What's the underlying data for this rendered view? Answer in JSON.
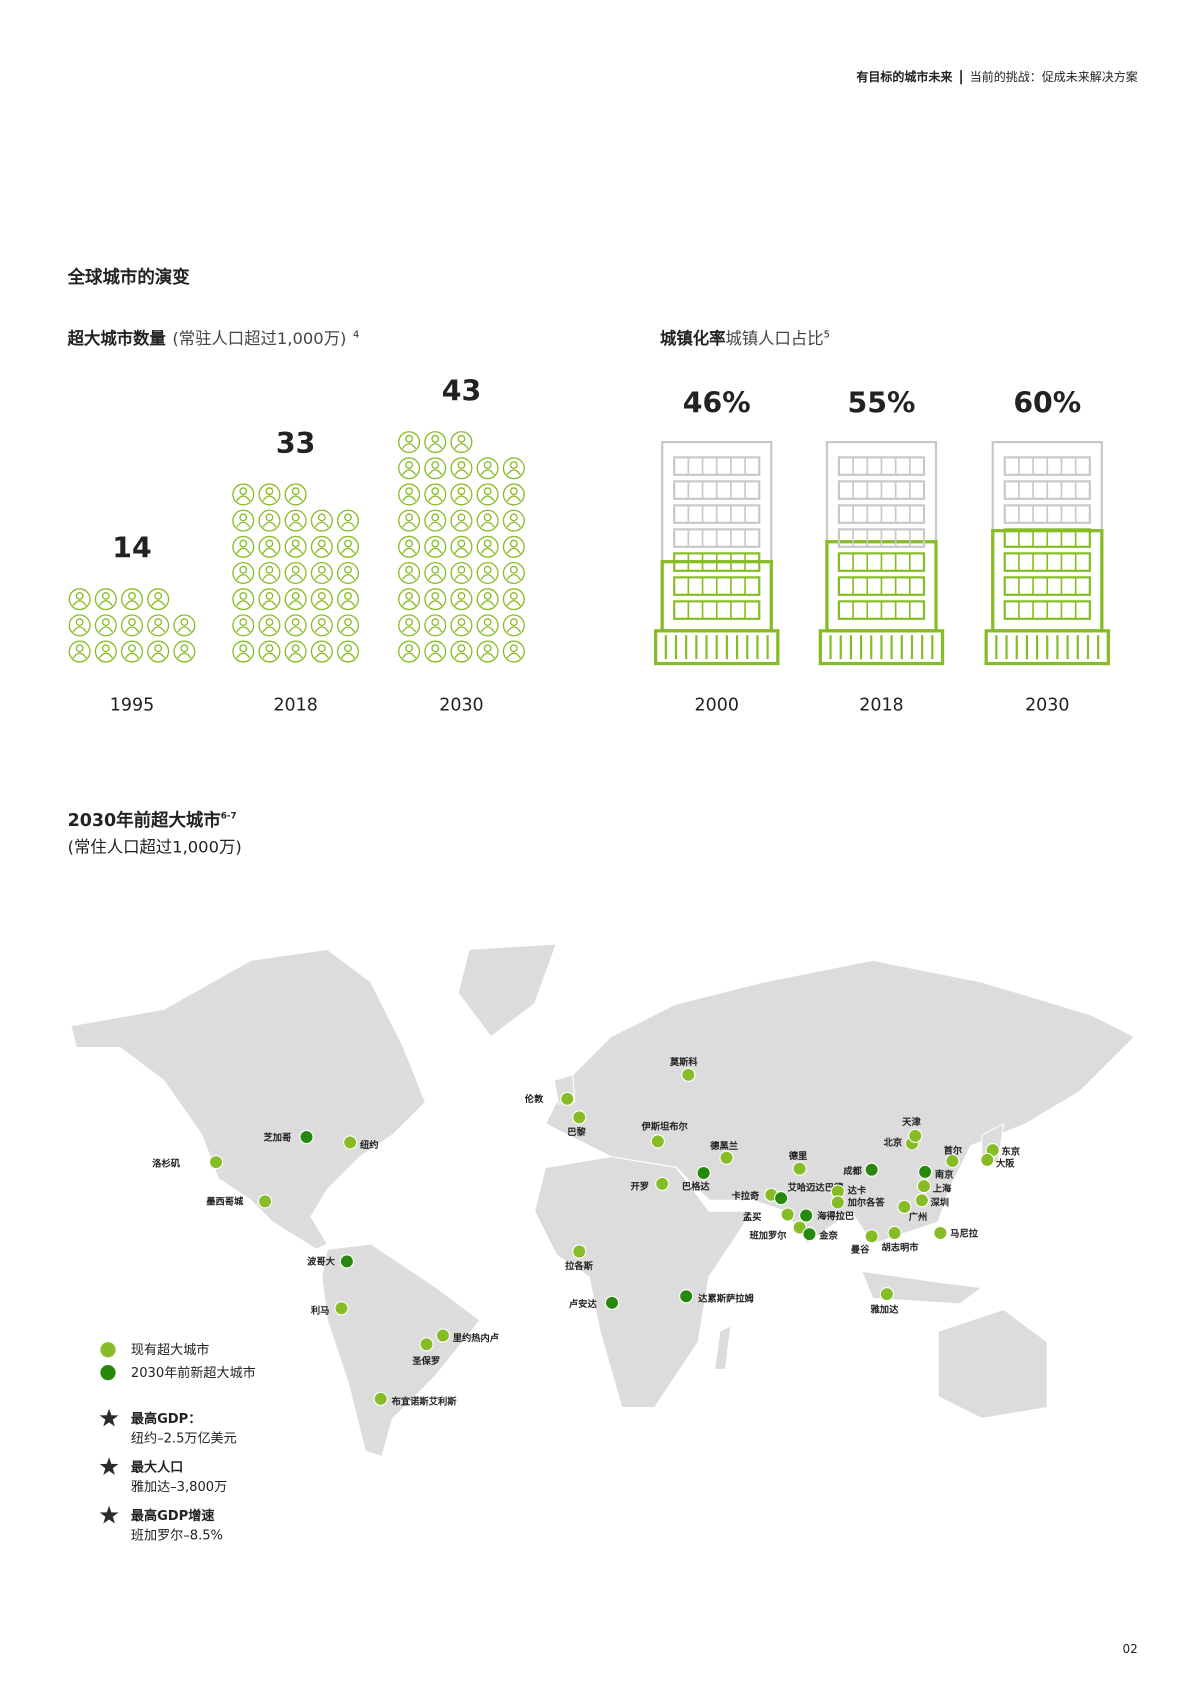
{
  "header": {
    "title": "有目标的城市未来",
    "subtitle": "当前的挑战：促成未来解决方案"
  },
  "section_title": "全球城市的演变",
  "chart_data": [
    {
      "type": "pictogram",
      "title": "超大城市数量",
      "subtitle": "(常驻人口超过1,000万)",
      "footnote": "4",
      "categories": [
        "1995",
        "2018",
        "2030"
      ],
      "values": [
        14,
        33,
        43
      ],
      "color": "#86bc25"
    },
    {
      "type": "building",
      "title": "城镇化率",
      "subtitle": "城镇人口占比",
      "footnote": "5",
      "categories": [
        "2000",
        "2018",
        "2030"
      ],
      "values": [
        46,
        55,
        60
      ],
      "value_labels": [
        "46%",
        "55%",
        "60%"
      ],
      "color": "#86bc25",
      "ylim": [
        0,
        100
      ]
    }
  ],
  "map": {
    "title": "2030年前超大城市",
    "title_note": "6-7",
    "subtitle": "(常住人口超过1,000万)",
    "legend": [
      {
        "label": "现有超大城市",
        "color": "#86bc25"
      },
      {
        "label": "2030年前新超大城市",
        "color": "#26890d"
      }
    ],
    "cities": [
      {
        "name": "莫斯科",
        "kind": 0
      },
      {
        "name": "伦敦",
        "kind": 0
      },
      {
        "name": "巴黎",
        "kind": 0
      },
      {
        "name": "伊斯坦布尔",
        "kind": 0
      },
      {
        "name": "德黑兰",
        "kind": 0
      },
      {
        "name": "开罗",
        "kind": 0
      },
      {
        "name": "巴格达",
        "kind": 1
      },
      {
        "name": "卡拉奇",
        "kind": 0
      },
      {
        "name": "德里",
        "kind": 0
      },
      {
        "name": "艾哈迈达巴德",
        "kind": 1
      },
      {
        "name": "孟买",
        "kind": 0
      },
      {
        "name": "海得拉巴",
        "kind": 1
      },
      {
        "name": "班加罗尔",
        "kind": 0
      },
      {
        "name": "金奈",
        "kind": 1
      },
      {
        "name": "成都",
        "kind": 1
      },
      {
        "name": "达卡",
        "kind": 0
      },
      {
        "name": "加尔各答",
        "kind": 0
      },
      {
        "name": "曼谷",
        "kind": 0
      },
      {
        "name": "胡志明市",
        "kind": 0
      },
      {
        "name": "广州",
        "kind": 0
      },
      {
        "name": "深圳",
        "kind": 0
      },
      {
        "name": "上海",
        "kind": 0
      },
      {
        "name": "南京",
        "kind": 1
      },
      {
        "name": "北京",
        "kind": 0
      },
      {
        "name": "天津",
        "kind": 0
      },
      {
        "name": "首尔",
        "kind": 0
      },
      {
        "name": "东京",
        "kind": 0
      },
      {
        "name": "大阪",
        "kind": 0
      },
      {
        "name": "马尼拉",
        "kind": 0
      },
      {
        "name": "雅加达",
        "kind": 0
      },
      {
        "name": "拉各斯",
        "kind": 0
      },
      {
        "name": "卢安达",
        "kind": 1
      },
      {
        "name": "达累斯萨拉姆",
        "kind": 1
      },
      {
        "name": "芝加哥",
        "kind": 1
      },
      {
        "name": "纽约",
        "kind": 0
      },
      {
        "name": "洛杉矶",
        "kind": 0
      },
      {
        "name": "墨西哥城",
        "kind": 0
      },
      {
        "name": "波哥大",
        "kind": 1
      },
      {
        "name": "利马",
        "kind": 0
      },
      {
        "name": "里约热内卢",
        "kind": 0
      },
      {
        "name": "圣保罗",
        "kind": 0
      },
      {
        "name": "布宜诺斯艾利斯",
        "kind": 0
      }
    ],
    "highlights": [
      {
        "title": "最高GDP：",
        "text": "纽约–2.5万亿美元"
      },
      {
        "title": "最大人口",
        "text": "雅加达–3,800万"
      },
      {
        "title": "最高GDP增速",
        "text": "班加罗尔–8.5%"
      }
    ]
  },
  "page_number": "02"
}
